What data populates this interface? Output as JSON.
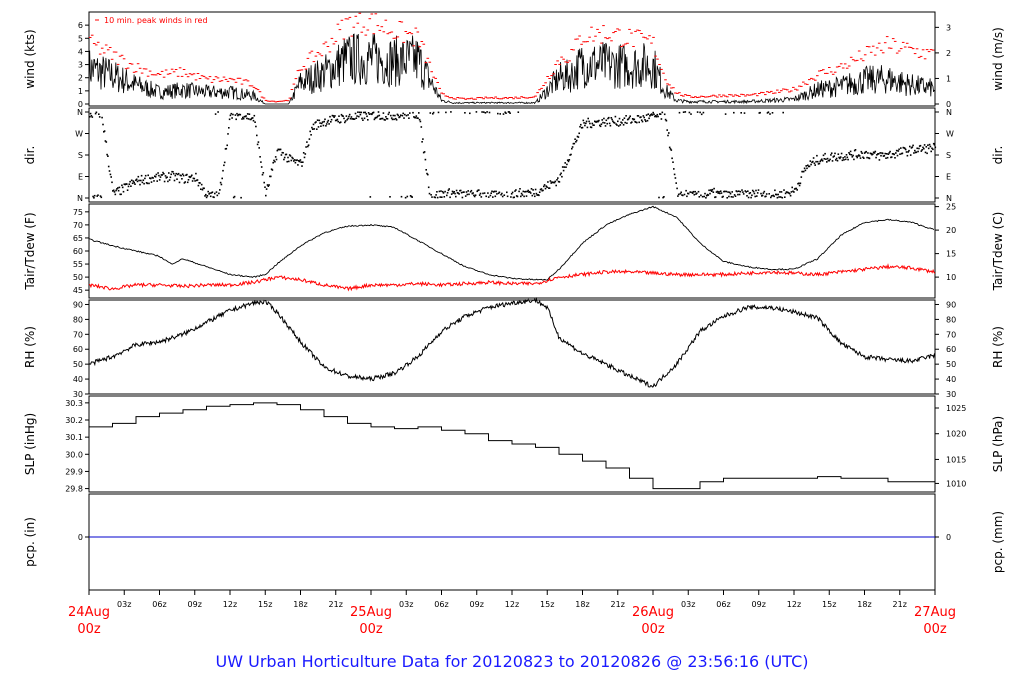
{
  "footer_title": "UW Urban Horticulture Data for 20120823  to  20120826 @ 23:56:16  (UTC)",
  "colors": {
    "primary": "#000000",
    "peak": "#ff0000",
    "dewpoint": "#ff0000",
    "precip": "#0000cc",
    "title": "#1a1aff",
    "date_label": "#ff0000"
  },
  "x_axis": {
    "hours_span": 72,
    "hour_ticks": [
      "03z",
      "06z",
      "09z",
      "12z",
      "15z",
      "18z",
      "21z",
      "03z",
      "06z",
      "09z",
      "12z",
      "15z",
      "18z",
      "21z",
      "03z",
      "06z",
      "09z",
      "12z",
      "15z",
      "18z",
      "21z"
    ],
    "hour_tick_hours": [
      3,
      6,
      9,
      12,
      15,
      18,
      21,
      27,
      30,
      33,
      36,
      39,
      42,
      45,
      51,
      54,
      57,
      60,
      63,
      66,
      69
    ],
    "date_labels": [
      {
        "hour": 0,
        "line1": "24Aug",
        "line2": "00z"
      },
      {
        "hour": 24,
        "line1": "25Aug",
        "line2": "00z"
      },
      {
        "hour": 48,
        "line1": "26Aug",
        "line2": "00z"
      },
      {
        "hour": 72,
        "line1": "27Aug",
        "line2": "00z"
      }
    ]
  },
  "chart_data": [
    {
      "type": "line",
      "name": "wind",
      "ylabel_left": "wind (kts)",
      "ylabel_right": "wind (m/s)",
      "annotation": "10 min. peak winds in red",
      "ylim": [
        0,
        7
      ],
      "left_ticks": [
        "0",
        "1",
        "2",
        "3",
        "4",
        "5",
        "6"
      ],
      "right_ticks": [
        "0",
        "1",
        "2",
        "3"
      ],
      "right_tick_values_kts": [
        0,
        1.944,
        3.888,
        5.832
      ],
      "series": [
        {
          "role": "mean",
          "x_hours": [
            0,
            2,
            4,
            6,
            8,
            10,
            12,
            14,
            15,
            16,
            17,
            18,
            20,
            22,
            24,
            26,
            28,
            30,
            31,
            32,
            34,
            36,
            38,
            40,
            41,
            42,
            44,
            46,
            48,
            49,
            50,
            51,
            52,
            54,
            56,
            58,
            60,
            62,
            64,
            66,
            68,
            70,
            72
          ],
          "values": [
            3.0,
            2.4,
            1.6,
            1.0,
            1.2,
            1.0,
            1.0,
            0.7,
            0.0,
            0.0,
            0.0,
            1.8,
            2.6,
            3.8,
            3.8,
            3.6,
            3.7,
            0.3,
            0.1,
            0.1,
            0.1,
            0.1,
            0.1,
            2.2,
            2.4,
            3.4,
            3.3,
            3.2,
            3.3,
            1.2,
            0.3,
            0.2,
            0.2,
            0.2,
            0.2,
            0.3,
            0.4,
            1.2,
            1.5,
            2.0,
            2.1,
            1.6,
            1.3
          ]
        },
        {
          "role": "peak",
          "x_hours": [
            0,
            2,
            4,
            6,
            8,
            10,
            12,
            14,
            15,
            16,
            17,
            18,
            20,
            22,
            24,
            26,
            28,
            30,
            31,
            32,
            34,
            36,
            38,
            40,
            41,
            42,
            44,
            46,
            48,
            49,
            50,
            51,
            52,
            54,
            56,
            58,
            60,
            62,
            64,
            66,
            68,
            70,
            72
          ],
          "values": [
            5.0,
            4.0,
            3.0,
            2.4,
            2.6,
            2.0,
            2.0,
            1.6,
            0.3,
            0.2,
            0.3,
            3.0,
            4.5,
            6.6,
            6.7,
            6.0,
            5.4,
            0.8,
            0.5,
            0.4,
            0.5,
            0.5,
            0.6,
            3.6,
            4.0,
            5.6,
            5.8,
            5.4,
            5.0,
            2.2,
            0.9,
            0.6,
            0.6,
            0.7,
            0.7,
            0.9,
            1.2,
            2.4,
            3.0,
            4.0,
            4.8,
            4.4,
            4.0
          ]
        }
      ]
    },
    {
      "type": "scatter",
      "name": "direction",
      "ylabel_left": "dir.",
      "ylabel_right": "dir.",
      "left_ticks": [
        "N",
        "W",
        "S",
        "E",
        "N"
      ],
      "right_ticks": [
        "N",
        "W",
        "S",
        "E",
        "N"
      ],
      "tick_degrees": [
        360,
        270,
        180,
        90,
        0
      ],
      "ylim": [
        0,
        360
      ],
      "x_hours": [
        0,
        1,
        2,
        3,
        4,
        5,
        6,
        7,
        8,
        9,
        10,
        11,
        12,
        13,
        14,
        15,
        16,
        17,
        18,
        19,
        20,
        21,
        22,
        23,
        24,
        25,
        26,
        27,
        28,
        29,
        30,
        31,
        32,
        33,
        34,
        35,
        36,
        37,
        38,
        39,
        40,
        41,
        42,
        43,
        44,
        45,
        46,
        47,
        48,
        49,
        50,
        51,
        52,
        53,
        54,
        55,
        56,
        57,
        58,
        59,
        60,
        61,
        62,
        63,
        64,
        65,
        66,
        67,
        68,
        69,
        70,
        71,
        72
      ],
      "degrees": [
        350,
        355,
        15,
        40,
        70,
        80,
        85,
        90,
        80,
        85,
        10,
        5,
        345,
        350,
        330,
        15,
        200,
        160,
        140,
        300,
        320,
        330,
        335,
        340,
        345,
        345,
        345,
        350,
        350,
        5,
        15,
        20,
        10,
        15,
        10,
        5,
        15,
        20,
        25,
        50,
        80,
        200,
        310,
        315,
        320,
        320,
        325,
        330,
        340,
        345,
        15,
        10,
        5,
        20,
        10,
        10,
        15,
        15,
        10,
        15,
        30,
        130,
        160,
        170,
        175,
        180,
        185,
        175,
        180,
        190,
        200,
        205,
        210
      ]
    },
    {
      "type": "line",
      "name": "temperature",
      "ylabel_left": "Tair/Tdew (F)",
      "ylabel_right": "Tair/Tdew (C)",
      "ylim": [
        42,
        78
      ],
      "left_ticks": [
        "45",
        "50",
        "55",
        "60",
        "65",
        "70",
        "75"
      ],
      "right_ticks": [
        "10",
        "15",
        "20",
        "25"
      ],
      "right_tick_values_f": [
        50,
        59,
        68,
        77
      ],
      "series": [
        {
          "role": "air",
          "x_hours": [
            0,
            2,
            4,
            6,
            7,
            8,
            10,
            12,
            14,
            15,
            16,
            18,
            20,
            22,
            24,
            26,
            28,
            30,
            32,
            34,
            36,
            38,
            39,
            40,
            42,
            44,
            46,
            48,
            50,
            52,
            54,
            56,
            58,
            60,
            62,
            64,
            66,
            68,
            70,
            72
          ],
          "values": [
            64.5,
            62,
            60,
            58,
            55,
            57,
            54,
            51,
            50,
            51,
            55,
            62,
            67,
            69.5,
            70,
            69,
            64,
            59,
            54,
            51,
            49.5,
            49,
            49,
            53,
            63,
            70,
            74,
            77,
            73,
            63,
            56,
            54,
            53,
            53,
            57,
            66,
            71,
            72,
            71,
            68
          ]
        },
        {
          "role": "dewpoint",
          "x_hours": [
            0,
            2,
            4,
            6,
            8,
            10,
            12,
            14,
            15,
            16,
            18,
            20,
            22,
            24,
            26,
            28,
            30,
            32,
            34,
            36,
            38,
            40,
            42,
            44,
            46,
            48,
            50,
            52,
            54,
            56,
            58,
            60,
            62,
            64,
            66,
            68,
            70,
            72
          ],
          "values": [
            47,
            45.5,
            47,
            47,
            46.5,
            47,
            47,
            48,
            49,
            50,
            49,
            47,
            45.5,
            47,
            47,
            47.5,
            47,
            47.5,
            48,
            47.5,
            47.5,
            50,
            51,
            52,
            52,
            51.5,
            51,
            51,
            51,
            51.5,
            52,
            51.5,
            51,
            52,
            53,
            54,
            53.5,
            52
          ]
        }
      ]
    },
    {
      "type": "line",
      "name": "relative_humidity",
      "ylabel_left": "RH (%)",
      "ylabel_right": "RH (%)",
      "ylim": [
        30,
        93
      ],
      "left_ticks": [
        "30",
        "40",
        "50",
        "60",
        "70",
        "80",
        "90"
      ],
      "right_ticks": [
        "30",
        "40",
        "50",
        "60",
        "70",
        "80",
        "90"
      ],
      "series": [
        {
          "x_hours": [
            0,
            2,
            4,
            6,
            8,
            10,
            12,
            14,
            15,
            16,
            18,
            20,
            22,
            24,
            26,
            28,
            30,
            32,
            34,
            36,
            38,
            39,
            40,
            42,
            44,
            46,
            48,
            50,
            52,
            54,
            56,
            58,
            60,
            62,
            64,
            66,
            68,
            70,
            72
          ],
          "values": [
            50,
            55,
            63,
            65,
            70,
            78,
            86,
            91,
            92,
            85,
            65,
            48,
            42,
            40,
            44,
            55,
            72,
            82,
            88,
            91,
            93,
            88,
            68,
            57,
            50,
            42,
            35,
            50,
            72,
            82,
            88,
            88,
            85,
            81,
            64,
            55,
            53,
            52,
            56
          ]
        }
      ]
    },
    {
      "type": "line",
      "name": "sea_level_pressure",
      "ylabel_left": "SLP (inHg)",
      "ylabel_right": "SLP (hPa)",
      "ylim": [
        29.78,
        30.34
      ],
      "left_ticks": [
        "29.8",
        "29.9",
        "30.0",
        "30.1",
        "30.2",
        "30.3"
      ],
      "right_ticks": [
        "1010",
        "1015",
        "1020",
        "1025"
      ],
      "right_tick_values_inhg": [
        29.83,
        29.97,
        30.12,
        30.27
      ],
      "series": [
        {
          "x_hours": [
            0,
            2,
            4,
            6,
            8,
            10,
            12,
            14,
            16,
            18,
            20,
            22,
            24,
            26,
            28,
            30,
            32,
            34,
            36,
            38,
            40,
            42,
            44,
            46,
            48,
            50,
            52,
            54,
            56,
            58,
            60,
            62,
            64,
            66,
            68,
            70,
            72
          ],
          "values": [
            30.16,
            30.18,
            30.22,
            30.24,
            30.26,
            30.28,
            30.29,
            30.3,
            30.29,
            30.26,
            30.22,
            30.18,
            30.16,
            30.15,
            30.16,
            30.14,
            30.12,
            30.08,
            30.06,
            30.04,
            30.0,
            29.96,
            29.92,
            29.86,
            29.8,
            29.8,
            29.84,
            29.86,
            29.86,
            29.86,
            29.86,
            29.87,
            29.86,
            29.86,
            29.84,
            29.84,
            29.88
          ]
        }
      ]
    },
    {
      "type": "line",
      "name": "precipitation",
      "ylabel_left": "pcp. (in)",
      "ylabel_right": "pcp. (mm)",
      "left_ticks": [
        "0"
      ],
      "right_ticks": [
        "0"
      ],
      "series": [
        {
          "x_hours": [
            0,
            72
          ],
          "values": [
            0,
            0
          ]
        }
      ]
    }
  ]
}
